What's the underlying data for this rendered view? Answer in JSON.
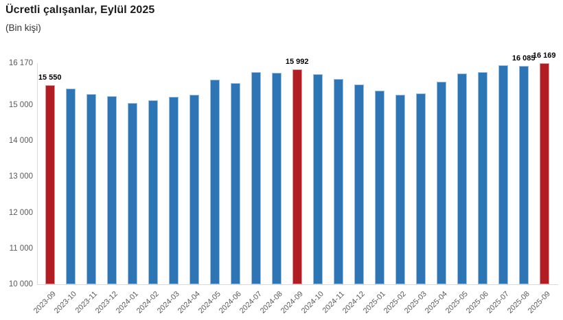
{
  "header": {
    "title": "Ücretli çalışanlar, Eylül 2025",
    "subtitle": "(Bin kişi)"
  },
  "chart_data": {
    "type": "bar",
    "title": "Ücretli çalışanlar, Eylül 2025",
    "subtitle": "(Bin kişi)",
    "unit": "Bin kişi",
    "categories": [
      "2023-09",
      "2023-10",
      "2023-11",
      "2023-12",
      "2024-01",
      "2024-02",
      "2024-03",
      "2024-04",
      "2024-05",
      "2024-06",
      "2024-07",
      "2024-08",
      "2024-09",
      "2024-10",
      "2024-11",
      "2024-12",
      "2025-01",
      "2025-02",
      "2025-03",
      "2025-04",
      "2025-05",
      "2025-06",
      "2025-07",
      "2025-08",
      "2025-09"
    ],
    "values": [
      15550,
      15455,
      15310,
      15245,
      15065,
      15135,
      15225,
      15280,
      15715,
      15610,
      15925,
      15900,
      15992,
      15860,
      15735,
      15575,
      15405,
      15295,
      15325,
      15660,
      15880,
      15925,
      16120,
      16085,
      16169
    ],
    "highlighted_indexes": [
      0,
      12,
      24
    ],
    "data_labels": [
      {
        "index": 0,
        "text": "15 550"
      },
      {
        "index": 12,
        "text": "15 992"
      },
      {
        "index": 23,
        "text": "16 085"
      },
      {
        "index": 24,
        "text": "16 169"
      }
    ],
    "ylim": [
      10000,
      16170
    ],
    "yticks": [
      {
        "value": 16170,
        "label": "16 170"
      },
      {
        "value": 15000,
        "label": "15 000"
      },
      {
        "value": 14000,
        "label": "14 000"
      },
      {
        "value": 13000,
        "label": "13 000"
      },
      {
        "value": 12000,
        "label": "12 000"
      },
      {
        "value": 11000,
        "label": "11 000"
      },
      {
        "value": 10000,
        "label": "10 000"
      }
    ],
    "grid": false,
    "legend": "none",
    "colors": {
      "bar": "#2E75B6",
      "highlight": "#B01E24",
      "axis_line": "#D9D9D9",
      "tick_label": "#595959",
      "data_label": "#000000"
    }
  }
}
